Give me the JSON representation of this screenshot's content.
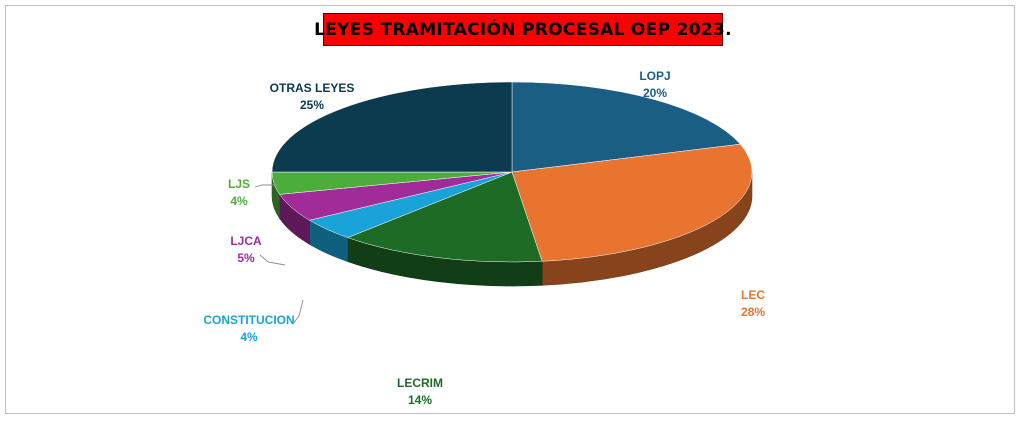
{
  "chart_data": {
    "type": "pie",
    "title": "LEYES TRAMITACIÓN PROCESAL OEP 2023.",
    "slices": [
      {
        "name": "LOPJ",
        "value": 20,
        "label": "20%",
        "color": "#1b5e83"
      },
      {
        "name": "LEC",
        "value": 28,
        "label": "28%",
        "color": "#e8742f"
      },
      {
        "name": "LECRIM",
        "value": 14,
        "label": "14%",
        "color": "#1e6b26"
      },
      {
        "name": "CONSTITUCION",
        "value": 4,
        "label": "4%",
        "color": "#1aa3d9"
      },
      {
        "name": "LJCA",
        "value": 5,
        "label": "5%",
        "color": "#a12b98"
      },
      {
        "name": "LJS",
        "value": 4,
        "label": "4%",
        "color": "#4cae3a"
      },
      {
        "name": "OTRAS LEYES",
        "value": 25,
        "label": "25%",
        "color": "#0c3a4f"
      }
    ],
    "label_colors": {
      "LOPJ": "#1b5e83",
      "LEC": "#e8742f",
      "LECRIM": "#1e6b26",
      "CONSTITUCION": "#1aa3d9",
      "LJCA": "#a12b98",
      "LJS": "#4cae3a",
      "OTRAS LEYES": "#0c3a4f"
    }
  }
}
